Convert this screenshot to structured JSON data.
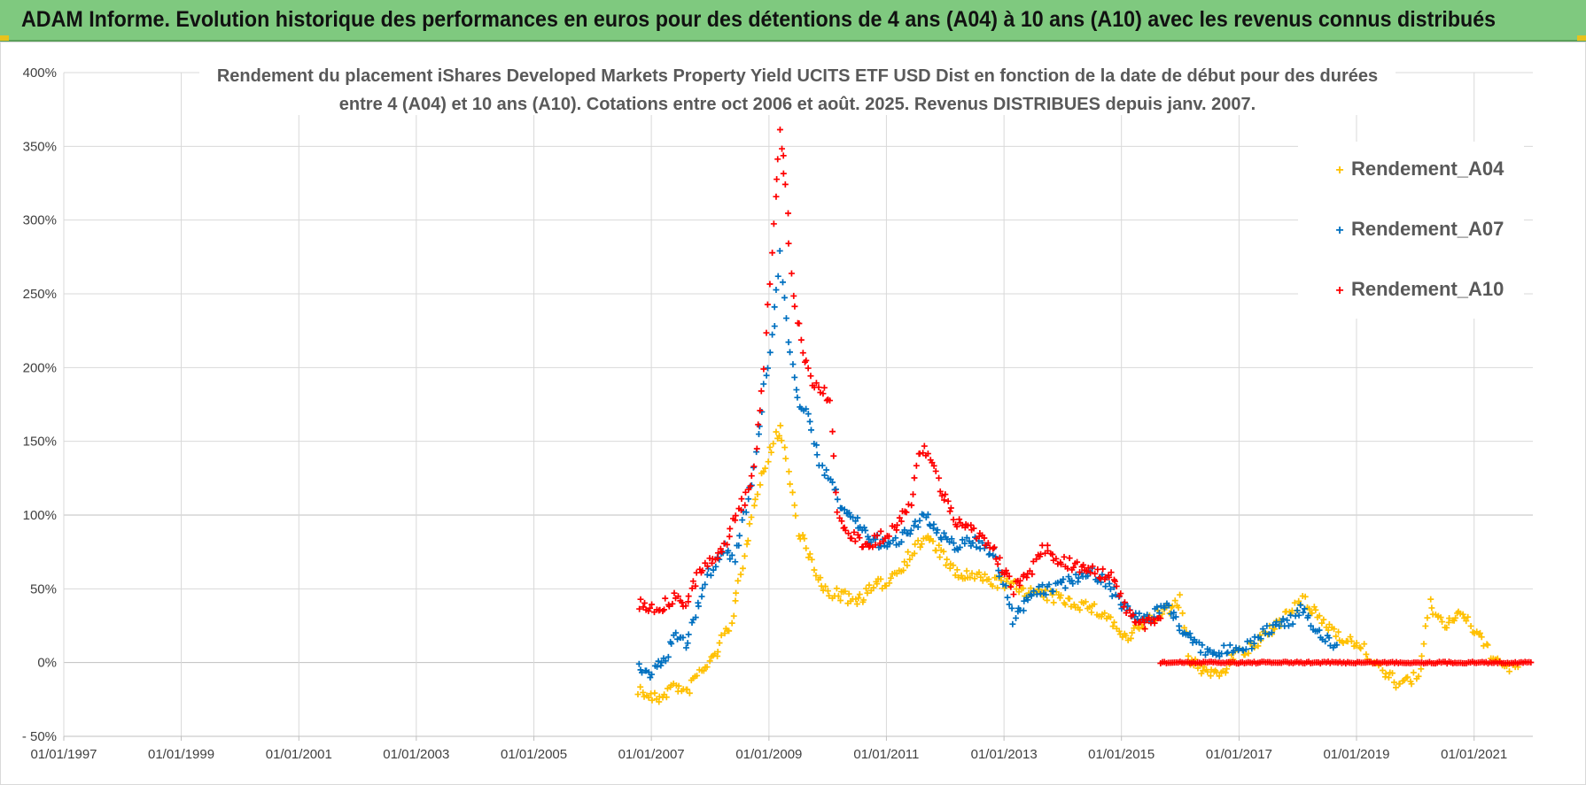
{
  "header": {
    "banner_title": "ADAM Informe. Evolution historique des performances en euros pour des détentions de 4 ans (A04) à 10 ans (A10) avec les revenus connus distribués"
  },
  "colors": {
    "banner": "#7fc97f",
    "A04": "#ffc000",
    "A07": "#0070c0",
    "A10": "#ff0000",
    "grid": "#d9d9d9"
  },
  "chart_data": {
    "type": "scatter",
    "title_lines": [
      "Rendement du placement iShares Developed Markets Property Yield UCITS ETF USD Dist en fonction de la date de début pour des durées",
      "entre 4 (A04) et 10 ans (A10).  Cotations entre oct 2006 et août. 2025. Revenus DISTRIBUES depuis janv. 2007."
    ],
    "xlabel": "",
    "ylabel": "",
    "x_ticks": [
      "01/01/1997",
      "01/01/1999",
      "01/01/2001",
      "01/01/2003",
      "01/01/2005",
      "01/01/2007",
      "01/01/2009",
      "01/01/2011",
      "01/01/2013",
      "01/01/2015",
      "01/01/2017",
      "01/01/2019",
      "01/01/2021"
    ],
    "xlim": [
      "1997-01-01",
      "2022-01-01"
    ],
    "y_ticks": [
      "400%",
      "350%",
      "300%",
      "250%",
      "200%",
      "150%",
      "100%",
      "50%",
      "0%",
      "- 50%"
    ],
    "ylim": [
      -50,
      400
    ],
    "y_unit": "%",
    "grid": true,
    "legend_position": "top-right",
    "marker": "plus",
    "series": [
      {
        "name": "Rendement_A04",
        "color_key": "A04",
        "points": [
          [
            "2006-10-15",
            -18
          ],
          [
            "2006-12-01",
            -22
          ],
          [
            "2007-02-01",
            -25
          ],
          [
            "2007-04-01",
            -20
          ],
          [
            "2007-06-01",
            -15
          ],
          [
            "2007-08-01",
            -22
          ],
          [
            "2007-10-01",
            -10
          ],
          [
            "2007-12-01",
            -3
          ],
          [
            "2008-02-01",
            5
          ],
          [
            "2008-03-15",
            15
          ],
          [
            "2008-05-01",
            25
          ],
          [
            "2008-06-15",
            45
          ],
          [
            "2008-08-01",
            70
          ],
          [
            "2008-10-01",
            110
          ],
          [
            "2008-12-01",
            130
          ],
          [
            "2009-02-01",
            150
          ],
          [
            "2009-03-10",
            160
          ],
          [
            "2009-05-01",
            130
          ],
          [
            "2009-07-01",
            90
          ],
          [
            "2009-09-01",
            75
          ],
          [
            "2009-11-01",
            55
          ],
          [
            "2010-01-01",
            48
          ],
          [
            "2010-04-01",
            45
          ],
          [
            "2010-07-01",
            42
          ],
          [
            "2010-10-01",
            50
          ],
          [
            "2011-01-01",
            55
          ],
          [
            "2011-04-01",
            65
          ],
          [
            "2011-07-01",
            78
          ],
          [
            "2011-09-01",
            85
          ],
          [
            "2011-12-01",
            75
          ],
          [
            "2012-03-01",
            60
          ],
          [
            "2012-07-01",
            58
          ],
          [
            "2012-11-01",
            55
          ],
          [
            "2013-03-01",
            52
          ],
          [
            "2013-06-01",
            48
          ],
          [
            "2013-10-01",
            45
          ],
          [
            "2014-02-01",
            42
          ],
          [
            "2014-06-01",
            38
          ],
          [
            "2014-10-01",
            32
          ],
          [
            "2015-02-01",
            15
          ],
          [
            "2015-06-01",
            28
          ],
          [
            "2015-10-01",
            35
          ],
          [
            "2016-01-01",
            42
          ],
          [
            "2016-03-01",
            0
          ],
          [
            "2016-06-01",
            -5
          ],
          [
            "2016-09-01",
            -8
          ],
          [
            "2016-12-01",
            5
          ],
          [
            "2017-04-01",
            10
          ],
          [
            "2017-08-01",
            25
          ],
          [
            "2017-12-01",
            35
          ],
          [
            "2018-02-01",
            42
          ],
          [
            "2018-06-01",
            28
          ],
          [
            "2018-10-01",
            18
          ],
          [
            "2019-02-01",
            10
          ],
          [
            "2019-06-01",
            -5
          ],
          [
            "2019-10-01",
            -15
          ],
          [
            "2020-02-01",
            -8
          ],
          [
            "2020-04-01",
            40
          ],
          [
            "2020-07-01",
            25
          ],
          [
            "2020-10-01",
            35
          ],
          [
            "2021-01-01",
            22
          ],
          [
            "2021-04-01",
            8
          ],
          [
            "2021-08-01",
            -5
          ],
          [
            "2021-10-01",
            -3
          ]
        ]
      },
      {
        "name": "Rendement_A07",
        "color_key": "A07",
        "points": [
          [
            "2006-10-15",
            0
          ],
          [
            "2006-12-15",
            -10
          ],
          [
            "2007-02-01",
            -5
          ],
          [
            "2007-04-01",
            5
          ],
          [
            "2007-06-01",
            18
          ],
          [
            "2007-08-01",
            12
          ],
          [
            "2007-10-01",
            32
          ],
          [
            "2007-12-01",
            55
          ],
          [
            "2008-02-01",
            68
          ],
          [
            "2008-04-01",
            78
          ],
          [
            "2008-06-01",
            70
          ],
          [
            "2008-08-01",
            100
          ],
          [
            "2008-10-01",
            130
          ],
          [
            "2008-12-01",
            185
          ],
          [
            "2009-02-01",
            230
          ],
          [
            "2009-03-10",
            275
          ],
          [
            "2009-05-01",
            220
          ],
          [
            "2009-07-01",
            180
          ],
          [
            "2009-09-01",
            165
          ],
          [
            "2009-11-01",
            140
          ],
          [
            "2010-01-01",
            125
          ],
          [
            "2010-04-01",
            105
          ],
          [
            "2010-07-01",
            95
          ],
          [
            "2010-10-01",
            85
          ],
          [
            "2011-01-01",
            78
          ],
          [
            "2011-04-01",
            85
          ],
          [
            "2011-07-01",
            95
          ],
          [
            "2011-09-01",
            100
          ],
          [
            "2011-12-01",
            85
          ],
          [
            "2012-03-01",
            80
          ],
          [
            "2012-07-01",
            82
          ],
          [
            "2012-11-01",
            75
          ],
          [
            "2013-03-01",
            30
          ],
          [
            "2013-06-01",
            45
          ],
          [
            "2013-10-01",
            50
          ],
          [
            "2014-02-01",
            55
          ],
          [
            "2014-06-01",
            62
          ],
          [
            "2014-10-01",
            55
          ],
          [
            "2015-02-01",
            35
          ],
          [
            "2015-06-01",
            28
          ],
          [
            "2015-10-01",
            40
          ],
          [
            "2016-01-01",
            25
          ],
          [
            "2016-04-01",
            12
          ],
          [
            "2016-08-01",
            5
          ],
          [
            "2016-12-01",
            10
          ],
          [
            "2017-04-01",
            14
          ],
          [
            "2017-08-01",
            24
          ],
          [
            "2017-12-01",
            30
          ],
          [
            "2018-02-01",
            38
          ],
          [
            "2018-05-01",
            20
          ],
          [
            "2018-09-01",
            12
          ]
        ]
      },
      {
        "name": "Rendement_A10",
        "color_key": "A10",
        "points": [
          [
            "2006-10-15",
            40
          ],
          [
            "2006-12-15",
            38
          ],
          [
            "2007-02-01",
            36
          ],
          [
            "2007-04-01",
            40
          ],
          [
            "2007-06-01",
            45
          ],
          [
            "2007-08-01",
            38
          ],
          [
            "2007-10-01",
            55
          ],
          [
            "2007-12-01",
            65
          ],
          [
            "2008-02-01",
            72
          ],
          [
            "2008-04-01",
            80
          ],
          [
            "2008-06-01",
            100
          ],
          [
            "2008-08-01",
            110
          ],
          [
            "2008-10-01",
            130
          ],
          [
            "2008-12-01",
            200
          ],
          [
            "2009-02-01",
            300
          ],
          [
            "2009-03-10",
            360
          ],
          [
            "2009-04-15",
            320
          ],
          [
            "2009-06-01",
            250
          ],
          [
            "2009-08-01",
            210
          ],
          [
            "2009-10-01",
            190
          ],
          [
            "2009-12-01",
            185
          ],
          [
            "2010-01-15",
            175
          ],
          [
            "2010-03-01",
            100
          ],
          [
            "2010-06-01",
            85
          ],
          [
            "2010-09-01",
            80
          ],
          [
            "2010-12-01",
            85
          ],
          [
            "2011-03-01",
            90
          ],
          [
            "2011-06-01",
            110
          ],
          [
            "2011-08-01",
            145
          ],
          [
            "2011-10-01",
            140
          ],
          [
            "2011-12-01",
            120
          ],
          [
            "2012-03-01",
            95
          ],
          [
            "2012-07-01",
            88
          ],
          [
            "2012-11-01",
            75
          ],
          [
            "2013-03-01",
            50
          ],
          [
            "2013-06-01",
            58
          ],
          [
            "2013-09-01",
            78
          ],
          [
            "2013-12-01",
            70
          ],
          [
            "2014-04-01",
            65
          ],
          [
            "2014-08-01",
            62
          ],
          [
            "2014-11-01",
            58
          ],
          [
            "2015-03-01",
            30
          ],
          [
            "2015-06-01",
            25
          ],
          [
            "2015-09-01",
            30
          ]
        ],
        "flat_segment": {
          "x_from": "2015-09-01",
          "x_to": "2021-12-31",
          "y": 0
        }
      }
    ]
  }
}
